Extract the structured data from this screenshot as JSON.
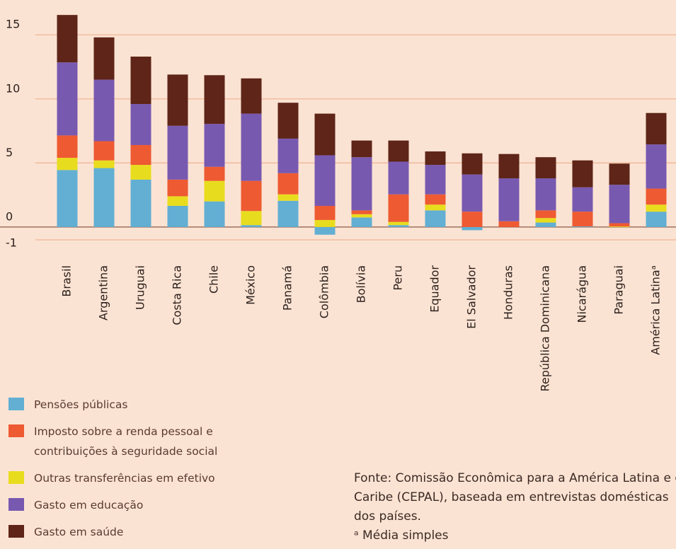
{
  "chart_data": {
    "type": "stacked-bar",
    "categories": [
      "Brasil",
      "Argentina",
      "Uruguai",
      "Costa Rica",
      "Chile",
      "México",
      "Panamá",
      "Colômbia",
      "Bolívia",
      "Peru",
      "Equador",
      "El Salvador",
      "Honduras",
      "República Dominicana",
      "Nicarágua",
      "Paraguai",
      "América Latinaᵃ"
    ],
    "series": [
      {
        "name": "Pensões públicas",
        "color": "#62afd3",
        "values": [
          4.45,
          4.6,
          3.7,
          1.65,
          2.0,
          0.15,
          2.05,
          -0.6,
          0.75,
          0.15,
          1.3,
          -0.25,
          0.0,
          0.35,
          0.05,
          0.0,
          1.2
        ]
      },
      {
        "name": "Imposto sobre a renda pessoal e contribuições à seguridade social",
        "color": "#ee5a32",
        "values": [
          1.75,
          1.5,
          1.55,
          1.3,
          1.1,
          2.35,
          1.65,
          1.1,
          0.3,
          2.15,
          0.8,
          1.2,
          0.45,
          0.6,
          1.15,
          0.25,
          1.25
        ]
      },
      {
        "name": "Outras transferências em efetivo",
        "color": "#e8dc1e",
        "values": [
          0.95,
          0.6,
          1.15,
          0.75,
          1.6,
          1.1,
          0.5,
          0.55,
          0.25,
          0.25,
          0.45,
          0.0,
          0.0,
          0.35,
          0.0,
          0.05,
          0.55
        ]
      },
      {
        "name": "Gasto em educação",
        "color": "#7859b0",
        "values": [
          5.7,
          4.8,
          3.2,
          4.2,
          3.35,
          5.25,
          2.7,
          3.95,
          4.15,
          2.55,
          2.3,
          2.9,
          3.35,
          2.5,
          1.9,
          3.0,
          3.45
        ]
      },
      {
        "name": "Gasto em saúde",
        "color": "#5e2518",
        "values": [
          3.7,
          3.3,
          3.7,
          4.0,
          3.8,
          2.75,
          2.8,
          3.25,
          1.3,
          1.65,
          1.05,
          1.65,
          1.9,
          1.65,
          2.1,
          1.65,
          2.45
        ]
      }
    ],
    "ylim": [
      -1,
      17
    ],
    "yticks": [
      15,
      10,
      5,
      0,
      -1
    ],
    "grid": true,
    "source": "Fonte: Comissão Econômica para a América Latina e o Caribe (CEPAL), baseada em entrevistas domésticas dos países.",
    "footnote": "ᵃ Média simples"
  }
}
